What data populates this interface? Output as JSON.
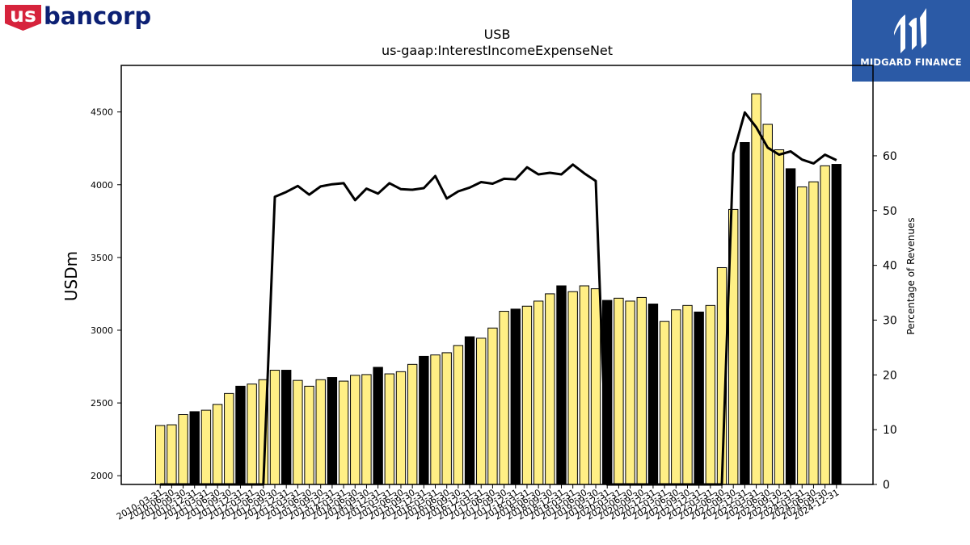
{
  "brand_left": {
    "us": "us",
    "rest": "bancorp"
  },
  "brand_right": {
    "name": "MIDGARD FINANCE"
  },
  "colors": {
    "bar_default": "#ffef85",
    "bar_highlight": "#000000",
    "line": "#000000",
    "usb_red": "#d6233c",
    "usb_blue": "#0c2074",
    "midgard_blue": "#2b5aa6"
  },
  "chart_data": {
    "type": "bar",
    "title": "USB",
    "subtitle": "us-gaap:InterestIncomeExpenseNet",
    "ylabel": "USDm",
    "y2label": "Percentage of Revenues",
    "ylim": [
      1940,
      4820
    ],
    "y2lim": [
      0,
      76.5
    ],
    "yticks": [
      2000,
      2500,
      3000,
      3500,
      4000,
      4500
    ],
    "y2ticks": [
      0,
      10,
      20,
      30,
      40,
      50,
      60
    ],
    "categories": [
      "2010-03-31",
      "2010-06-30",
      "2010-09-30",
      "2010-12-31",
      "2011-03-31",
      "2011-06-30",
      "2011-09-30",
      "2011-12-31",
      "2012-03-31",
      "2012-06-30",
      "2012-09-30",
      "2012-12-31",
      "2013-03-31",
      "2013-06-30",
      "2013-09-30",
      "2013-12-31",
      "2014-03-31",
      "2014-06-30",
      "2014-09-30",
      "2014-12-31",
      "2015-03-31",
      "2015-06-30",
      "2015-09-30",
      "2015-12-31",
      "2016-03-31",
      "2016-06-30",
      "2016-09-30",
      "2016-12-31",
      "2017-03-31",
      "2017-06-30",
      "2017-09-30",
      "2017-12-31",
      "2018-03-31",
      "2018-06-30",
      "2018-09-30",
      "2018-12-31",
      "2019-03-31",
      "2019-06-30",
      "2019-09-30",
      "2019-12-31",
      "2020-03-31",
      "2020-06-30",
      "2020-09-30",
      "2020-12-31",
      "2021-03-31",
      "2021-06-30",
      "2021-09-30",
      "2021-12-31",
      "2022-03-31",
      "2022-06-30",
      "2022-09-30",
      "2022-12-31",
      "2023-03-31",
      "2023-06-30",
      "2023-09-30",
      "2023-12-31",
      "2024-03-31",
      "2024-06-30",
      "2024-09-30",
      "2024-12-31"
    ],
    "visible_tick_labels": [
      "2010-03-31",
      "2010-06-30",
      "2010-09-30",
      "2010-12-31",
      "2011-03-31",
      "2011-06-30",
      "2011-09-30",
      "2011-12-31",
      "2012-03-31",
      "2012-06-30",
      "2012-09-30",
      "2012-12-31",
      "2013-03-31",
      "2013-06-30",
      "2013-09-30",
      "2013-12-31",
      "2014-03-31",
      "2014-06-30",
      "2014-09-30",
      "2014-12-31",
      "2015-03-31",
      "2015-06-30",
      "2015-09-30",
      "2015-12-31",
      "2016-03-31",
      "2016-06-30",
      "2016-09-30",
      "2016-12-31",
      "2017-03-31",
      "2017-06-30",
      "2017-09-30",
      "2017-12-31",
      "2018-03-31",
      "2018-06-30",
      "2018-09-30",
      "2018-12-31",
      "2019-03-31",
      "2019-06-30",
      "2019-09-30",
      "2019-12-31",
      "2020-03-31",
      "2020-06-30",
      "2020-09-30",
      "2020-12-31",
      "2021-03-31",
      "2021-06-30",
      "2021-09-30",
      "2021-12-31",
      "2022-03-31",
      "2022-06-30",
      "2022-09-30",
      "2022-12-31",
      "2023-03-31",
      "2023-06-30",
      "2023-09-30",
      "2023-12-31",
      "2024-03-31",
      "2024-06-30",
      "2024-09-30",
      "2024-12-31"
    ],
    "bar_values": [
      2345,
      2350,
      2420,
      2440,
      2450,
      2490,
      2565,
      2615,
      2630,
      2660,
      2725,
      2725,
      2655,
      2615,
      2660,
      2675,
      2650,
      2690,
      2695,
      2745,
      2700,
      2715,
      2765,
      2820,
      2830,
      2845,
      2895,
      2955,
      2945,
      3015,
      3130,
      3145,
      3165,
      3200,
      3250,
      3305,
      3265,
      3305,
      3285,
      3205,
      3220,
      3200,
      3225,
      3180,
      3060,
      3140,
      3170,
      3125,
      3170,
      3430,
      3830,
      4290,
      4625,
      4415,
      4240,
      4110,
      3985,
      4020,
      4130,
      4140
    ],
    "highlight_flags": [
      0,
      0,
      0,
      1,
      0,
      0,
      0,
      1,
      0,
      0,
      0,
      1,
      0,
      0,
      0,
      1,
      0,
      0,
      0,
      1,
      0,
      0,
      0,
      1,
      0,
      0,
      0,
      1,
      0,
      0,
      0,
      1,
      0,
      0,
      0,
      1,
      0,
      0,
      0,
      1,
      0,
      0,
      0,
      1,
      0,
      0,
      0,
      1,
      0,
      0,
      0,
      1,
      0,
      0,
      0,
      1,
      0,
      0,
      0,
      1
    ],
    "line_values": [
      0,
      0,
      0,
      0,
      0,
      0,
      0,
      0,
      0,
      0,
      52.5,
      53.4,
      54.5,
      52.9,
      54.4,
      54.8,
      55.0,
      51.9,
      54.0,
      53.1,
      55.0,
      53.9,
      53.8,
      54.1,
      56.3,
      52.2,
      53.5,
      54.2,
      55.2,
      54.9,
      55.8,
      55.7,
      57.9,
      56.6,
      56.9,
      56.6,
      58.4,
      56.8,
      55.4,
      0,
      0,
      0,
      0,
      0,
      0,
      0,
      0,
      0,
      0,
      0,
      60.4,
      67.9,
      65.2,
      61.5,
      60.2,
      60.8,
      59.3,
      58.6,
      60.2,
      59.2
    ],
    "grid": false
  }
}
